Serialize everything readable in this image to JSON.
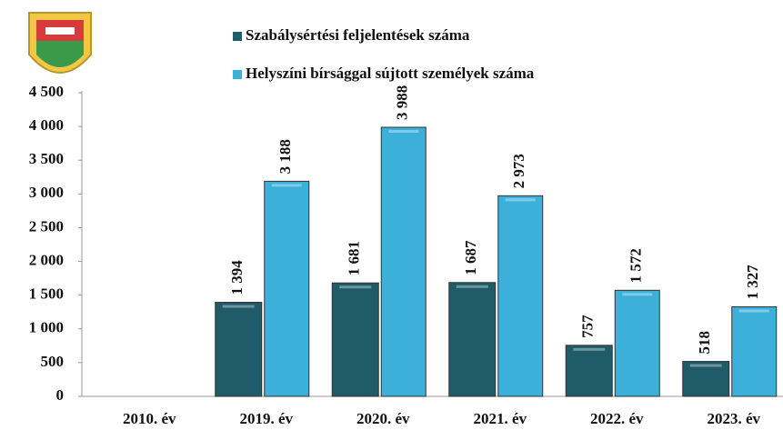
{
  "chart_data": {
    "type": "bar",
    "categories": [
      "2010. év",
      "2019. év",
      "2020. év",
      "2021. év",
      "2022. év",
      "2023. év"
    ],
    "series": [
      {
        "name": "Szabálysértési feljelentések száma",
        "color": "#1f5b68",
        "values": [
          null,
          1394,
          1681,
          1687,
          757,
          518
        ],
        "value_labels": [
          null,
          "1 394",
          "1 681",
          "1 687",
          "757",
          "518"
        ]
      },
      {
        "name": "Helyszíni bírsággal sújtott személyek száma",
        "color": "#3db0da",
        "values": [
          null,
          3188,
          3988,
          2973,
          1572,
          1327
        ],
        "value_labels": [
          null,
          "3 188",
          "3 988",
          "2 973",
          "1 572",
          "1 327"
        ]
      }
    ],
    "ylim": [
      0,
      4500
    ],
    "yticks": [
      0,
      500,
      {
        "value": 1000,
        "label": "1 000"
      },
      {
        "value": 1500,
        "label": "1 500"
      },
      {
        "value": 2000,
        "label": "2 000"
      },
      {
        "value": 2500,
        "label": "2 500"
      },
      {
        "value": 3000,
        "label": "3 000"
      },
      {
        "value": 3500,
        "label": "3 500"
      },
      {
        "value": 4000,
        "label": "4 000"
      },
      {
        "value": 4500,
        "label": "4 500"
      }
    ]
  }
}
